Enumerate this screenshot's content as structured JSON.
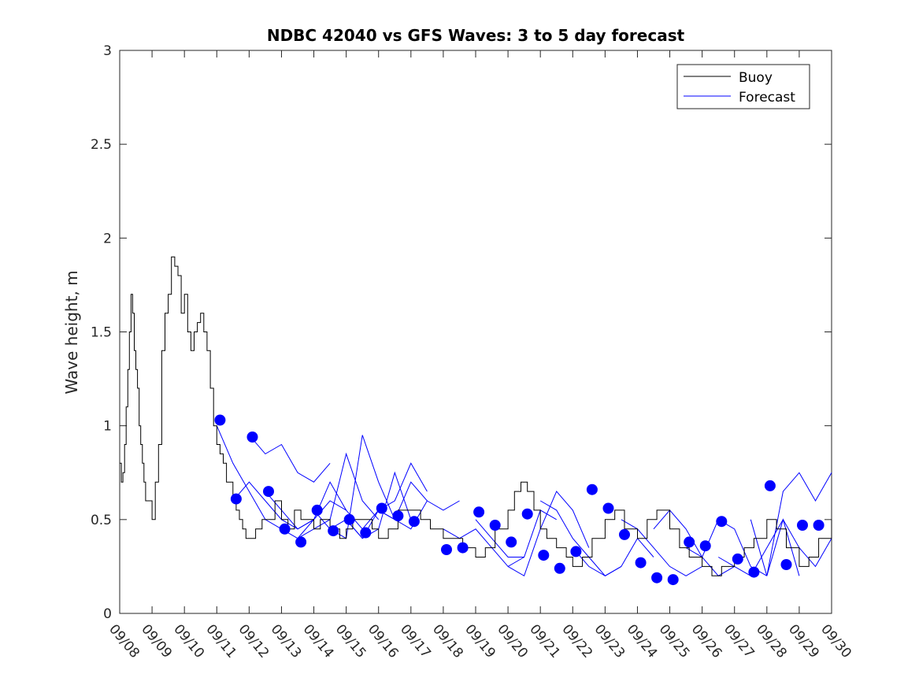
{
  "chart_data": {
    "type": "line",
    "title": "NDBC 42040 vs GFS Waves: 3 to 5 day forecast",
    "xlabel": "",
    "ylabel": "Wave height, m",
    "ylim": [
      0,
      3
    ],
    "yticks": [
      "0",
      "0.5",
      "1",
      "1.5",
      "2",
      "2.5",
      "3"
    ],
    "xlim_days": [
      0,
      22
    ],
    "xticks": [
      "09/08",
      "09/09",
      "09/10",
      "09/11",
      "09/12",
      "09/13",
      "09/14",
      "09/15",
      "09/16",
      "09/17",
      "09/18",
      "09/19",
      "09/20",
      "09/21",
      "09/22",
      "09/23",
      "09/24",
      "09/25",
      "09/26",
      "09/27",
      "09/28",
      "09/29",
      "09/30"
    ],
    "legend": {
      "position": "top-right",
      "entries": [
        {
          "label": "Buoy",
          "color": "#000000"
        },
        {
          "label": "Forecast",
          "color": "#0000ff"
        }
      ]
    },
    "buoy": {
      "name": "Buoy",
      "x": [
        0,
        0.05,
        0.1,
        0.15,
        0.2,
        0.25,
        0.3,
        0.35,
        0.4,
        0.45,
        0.5,
        0.55,
        0.6,
        0.65,
        0.7,
        0.75,
        0.8,
        0.9,
        1.0,
        1.1,
        1.2,
        1.3,
        1.4,
        1.5,
        1.6,
        1.7,
        1.8,
        1.9,
        2.0,
        2.1,
        2.2,
        2.3,
        2.4,
        2.5,
        2.6,
        2.7,
        2.8,
        2.9,
        3.0,
        3.1,
        3.2,
        3.3,
        3.4,
        3.5,
        3.6,
        3.7,
        3.8,
        3.9,
        4.0,
        4.2,
        4.4,
        4.6,
        4.8,
        5.0,
        5.2,
        5.4,
        5.6,
        5.8,
        6.0,
        6.2,
        6.5,
        6.8,
        7.0,
        7.2,
        7.5,
        7.8,
        8.0,
        8.3,
        8.6,
        9.0,
        9.3,
        9.6,
        10.0,
        10.3,
        10.6,
        11.0,
        11.3,
        11.6,
        12.0,
        12.2,
        12.4,
        12.6,
        12.8,
        13.0,
        13.2,
        13.5,
        13.8,
        14.0,
        14.3,
        14.6,
        15.0,
        15.3,
        15.6,
        16.0,
        16.3,
        16.6,
        17.0,
        17.3,
        17.6,
        18.0,
        18.3,
        18.6,
        19.0,
        19.3,
        19.6,
        20.0,
        20.3,
        20.6,
        21.0,
        21.3,
        21.6,
        22.0
      ],
      "y": [
        0.8,
        0.7,
        0.75,
        0.9,
        1.1,
        1.3,
        1.5,
        1.7,
        1.6,
        1.4,
        1.3,
        1.2,
        1.0,
        0.9,
        0.8,
        0.7,
        0.6,
        0.6,
        0.5,
        0.7,
        0.9,
        1.4,
        1.6,
        1.7,
        1.9,
        1.85,
        1.8,
        1.6,
        1.7,
        1.5,
        1.4,
        1.5,
        1.55,
        1.6,
        1.5,
        1.4,
        1.2,
        1.0,
        0.9,
        0.85,
        0.8,
        0.7,
        0.7,
        0.6,
        0.55,
        0.5,
        0.45,
        0.4,
        0.4,
        0.45,
        0.5,
        0.5,
        0.6,
        0.5,
        0.45,
        0.55,
        0.5,
        0.5,
        0.45,
        0.5,
        0.45,
        0.4,
        0.45,
        0.5,
        0.5,
        0.45,
        0.4,
        0.45,
        0.55,
        0.55,
        0.5,
        0.45,
        0.4,
        0.4,
        0.35,
        0.3,
        0.35,
        0.45,
        0.55,
        0.65,
        0.7,
        0.65,
        0.55,
        0.45,
        0.4,
        0.35,
        0.3,
        0.25,
        0.3,
        0.4,
        0.5,
        0.55,
        0.45,
        0.4,
        0.5,
        0.55,
        0.45,
        0.35,
        0.3,
        0.25,
        0.2,
        0.25,
        0.3,
        0.35,
        0.4,
        0.5,
        0.45,
        0.35,
        0.25,
        0.3,
        0.4,
        0.5
      ]
    },
    "forecast_lines": [
      {
        "x": [
          3.0,
          3.5,
          4.0,
          4.5,
          5.0
        ],
        "y": [
          1.0,
          0.8,
          0.65,
          0.5,
          0.45
        ]
      },
      {
        "x": [
          3.5,
          4.0,
          4.5,
          5.0,
          5.5,
          6.0
        ],
        "y": [
          0.6,
          0.7,
          0.6,
          0.5,
          0.45,
          0.5
        ]
      },
      {
        "x": [
          4.0,
          4.5,
          5.0,
          5.5,
          6.0,
          6.5
        ],
        "y": [
          0.95,
          0.85,
          0.9,
          0.75,
          0.7,
          0.8
        ]
      },
      {
        "x": [
          4.5,
          5.0,
          5.5,
          6.0,
          6.5,
          7.0
        ],
        "y": [
          0.65,
          0.55,
          0.45,
          0.5,
          0.6,
          0.55
        ]
      },
      {
        "x": [
          5.0,
          5.5,
          6.0,
          6.5,
          7.0,
          7.5
        ],
        "y": [
          0.45,
          0.4,
          0.5,
          0.7,
          0.55,
          0.45
        ]
      },
      {
        "x": [
          5.5,
          6.0,
          6.5,
          7.0,
          7.5,
          8.0
        ],
        "y": [
          0.4,
          0.45,
          0.5,
          0.85,
          0.6,
          0.5
        ]
      },
      {
        "x": [
          6.0,
          6.5,
          7.0,
          7.5,
          8.0,
          8.5
        ],
        "y": [
          0.55,
          0.45,
          0.4,
          0.95,
          0.7,
          0.5
        ]
      },
      {
        "x": [
          6.5,
          7.0,
          7.5,
          8.0,
          8.5,
          9.0
        ],
        "y": [
          0.45,
          0.5,
          0.4,
          0.45,
          0.75,
          0.5
        ]
      },
      {
        "x": [
          7.0,
          7.5,
          8.0,
          8.5,
          9.0,
          9.5
        ],
        "y": [
          0.5,
          0.4,
          0.55,
          0.6,
          0.8,
          0.65
        ]
      },
      {
        "x": [
          7.5,
          8.0,
          8.5,
          9.0,
          9.5
        ],
        "y": [
          0.45,
          0.55,
          0.5,
          0.7,
          0.6
        ]
      },
      {
        "x": [
          8.0,
          8.5,
          9.0,
          9.5,
          10.0,
          10.5
        ],
        "y": [
          0.55,
          0.5,
          0.45,
          0.6,
          0.55,
          0.6
        ]
      },
      {
        "x": [
          10.0,
          10.5,
          11.0,
          11.5,
          12.0,
          12.5
        ],
        "y": [
          0.45,
          0.4,
          0.45,
          0.35,
          0.25,
          0.3
        ]
      },
      {
        "x": [
          11.0,
          11.5,
          12.0,
          12.5,
          13.0,
          13.5
        ],
        "y": [
          0.5,
          0.4,
          0.3,
          0.3,
          0.55,
          0.5
        ]
      },
      {
        "x": [
          12.0,
          12.5,
          13.0,
          13.5,
          14.0,
          14.5
        ],
        "y": [
          0.25,
          0.2,
          0.45,
          0.65,
          0.55,
          0.35
        ]
      },
      {
        "x": [
          13.0,
          13.5,
          14.0,
          14.5,
          15.0,
          15.5
        ],
        "y": [
          0.6,
          0.55,
          0.4,
          0.3,
          0.2,
          0.25
        ]
      },
      {
        "x": [
          14.0,
          14.5,
          15.0,
          15.5,
          16.0,
          16.5
        ],
        "y": [
          0.35,
          0.25,
          0.2,
          0.25,
          0.4,
          0.3
        ]
      },
      {
        "x": [
          15.5,
          16.0,
          16.5,
          17.0,
          17.5,
          18.0
        ],
        "y": [
          0.5,
          0.45,
          0.35,
          0.25,
          0.2,
          0.25
        ]
      },
      {
        "x": [
          16.5,
          17.0,
          17.5,
          18.0,
          18.5,
          19.0
        ],
        "y": [
          0.45,
          0.55,
          0.45,
          0.3,
          0.2,
          0.25
        ]
      },
      {
        "x": [
          17.5,
          18.0,
          18.5,
          19.0,
          19.5,
          20.0
        ],
        "y": [
          0.35,
          0.3,
          0.5,
          0.45,
          0.25,
          0.2
        ]
      },
      {
        "x": [
          18.5,
          19.0,
          19.5,
          20.0,
          20.5,
          21.0
        ],
        "y": [
          0.3,
          0.25,
          0.2,
          0.35,
          0.5,
          0.2
        ]
      },
      {
        "x": [
          19.5,
          20.0,
          20.5,
          21.0,
          21.5,
          22.0
        ],
        "y": [
          0.5,
          0.2,
          0.65,
          0.75,
          0.6,
          0.75
        ]
      },
      {
        "x": [
          20.0,
          20.5,
          21.0,
          21.5,
          22.0
        ],
        "y": [
          0.2,
          0.5,
          0.35,
          0.25,
          0.4
        ]
      }
    ],
    "forecast_points": {
      "x": [
        3.1,
        3.6,
        4.1,
        4.6,
        5.1,
        5.6,
        6.1,
        6.6,
        7.1,
        7.6,
        8.1,
        8.6,
        9.1,
        10.1,
        10.6,
        11.1,
        11.6,
        12.1,
        12.6,
        13.1,
        13.6,
        14.1,
        14.6,
        15.1,
        15.6,
        16.1,
        16.6,
        17.1,
        17.6,
        18.1,
        18.6,
        19.1,
        19.6,
        20.1,
        20.6,
        21.1,
        21.6
      ],
      "y": [
        1.03,
        0.61,
        0.94,
        0.65,
        0.45,
        0.38,
        0.55,
        0.44,
        0.5,
        0.43,
        0.56,
        0.52,
        0.49,
        0.34,
        0.35,
        0.54,
        0.47,
        0.38,
        0.53,
        0.31,
        0.24,
        0.33,
        0.66,
        0.56,
        0.42,
        0.27,
        0.19,
        0.18,
        0.38,
        0.36,
        0.49,
        0.29,
        0.22,
        0.68,
        0.26,
        0.47,
        0.47
      ]
    }
  }
}
